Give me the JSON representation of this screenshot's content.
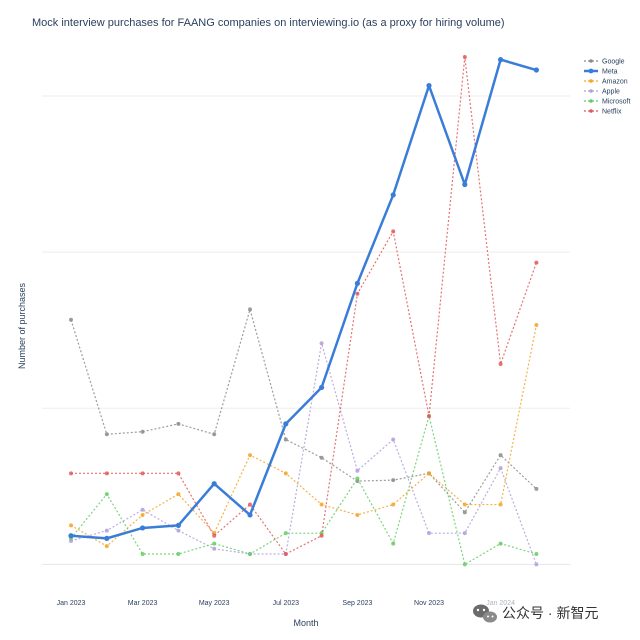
{
  "chart_data": {
    "type": "line",
    "title": "Mock interview purchases for FAANG companies on interviewing.io (as a proxy for hiring volume)",
    "xlabel": "Month",
    "ylabel": "Number of purchases",
    "grid": true,
    "legend_position": "top-right",
    "y_ticks_labeled": false,
    "x": [
      "2023-01",
      "2023-02",
      "2023-03",
      "2023-04",
      "2023-05",
      "2023-06",
      "2023-07",
      "2023-08",
      "2023-09",
      "2023-10",
      "2023-11",
      "2023-12",
      "2024-01",
      "2024-02"
    ],
    "x_tick_labels": [
      {
        "index": 0,
        "label": "Jan 2023"
      },
      {
        "index": 2,
        "label": "Mar 2023"
      },
      {
        "index": 4,
        "label": "May 2023"
      },
      {
        "index": 6,
        "label": "Jul 2023"
      },
      {
        "index": 8,
        "label": "Sep 2023"
      },
      {
        "index": 10,
        "label": "Nov 2023"
      },
      {
        "index": 12,
        "label": "Jan 2024"
      }
    ],
    "ylim": [
      -0.3,
      10.0
    ],
    "y_gridlines": [
      0,
      3,
      6,
      9
    ],
    "series": [
      {
        "name": "Google",
        "color": "#8c8c8c",
        "style": "dotted",
        "values": [
          4.7,
          2.5,
          2.55,
          2.7,
          2.5,
          4.9,
          2.4,
          2.05,
          1.6,
          1.62,
          1.75,
          1.0,
          2.1,
          1.45
        ]
      },
      {
        "name": "Meta",
        "color": "#3a7dd8",
        "style": "solid",
        "values": [
          0.55,
          0.5,
          0.7,
          0.75,
          1.55,
          0.95,
          2.7,
          3.4,
          5.4,
          7.1,
          9.2,
          7.3,
          9.7,
          9.5
        ]
      },
      {
        "name": "Amazon",
        "color": "#f5a623",
        "style": "dotted",
        "values": [
          0.75,
          0.35,
          0.95,
          1.35,
          0.6,
          2.1,
          1.75,
          1.15,
          0.95,
          1.15,
          1.75,
          1.15,
          1.15,
          4.6
        ]
      },
      {
        "name": "Apple",
        "color": "#b39ddb",
        "style": "dotted",
        "values": [
          0.45,
          0.65,
          1.05,
          0.65,
          0.3,
          0.2,
          0.2,
          4.25,
          1.8,
          2.4,
          0.6,
          0.6,
          1.85,
          0.0
        ]
      },
      {
        "name": "Microsoft",
        "color": "#66cc66",
        "style": "dotted",
        "values": [
          0.5,
          1.35,
          0.2,
          0.2,
          0.4,
          0.2,
          0.6,
          0.6,
          1.65,
          0.4,
          2.85,
          0.0,
          0.4,
          0.2
        ]
      },
      {
        "name": "Netflix",
        "color": "#e05a5a",
        "style": "dotted",
        "values": [
          1.75,
          1.75,
          1.75,
          1.75,
          0.55,
          1.15,
          0.2,
          0.55,
          5.2,
          6.4,
          2.85,
          9.75,
          3.85,
          5.8
        ]
      }
    ]
  },
  "watermark": {
    "text": "公众号 · 新智元"
  }
}
